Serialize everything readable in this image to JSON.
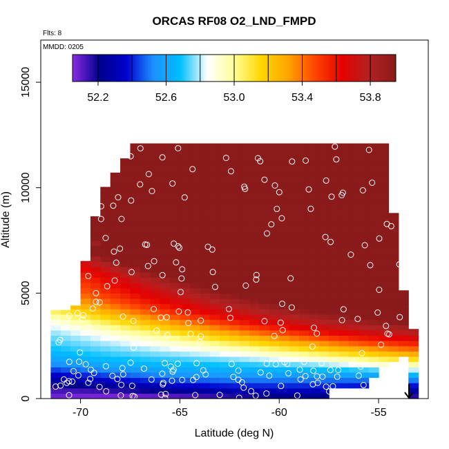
{
  "chart_data": {
    "type": "heatmap",
    "title": "ORCAS RF08 O2_LND_FMPD",
    "flights_label": "Flts: 8",
    "date_label": "MMDD: 0205",
    "xlabel": "Latitude (deg N)",
    "ylabel": "Altitude (m)",
    "xlim": [
      -72,
      -52.5
    ],
    "ylim": [
      0,
      17000
    ],
    "x_ticks": [
      -70,
      -65,
      -60,
      -55
    ],
    "x_tick_labels": [
      "-70",
      "-65",
      "-60",
      "-55"
    ],
    "y_ticks": [
      0,
      5000,
      10000,
      15000
    ],
    "y_tick_labels": [
      "0",
      "5000",
      "10000",
      "15000"
    ],
    "colorbar": {
      "min": 52.05,
      "max": 53.95,
      "ticks": [
        52.2,
        52.6,
        53.0,
        53.4,
        53.8
      ],
      "tick_labels": [
        "52.2",
        "52.6",
        "53.0",
        "53.4",
        "53.8"
      ],
      "colors": [
        "#8a2be2",
        "#00008b",
        "#0000cd",
        "#1e90ff",
        "#00bfff",
        "#ffffff",
        "#ffff99",
        "#ffd700",
        "#ffa500",
        "#ff4500",
        "#e60000",
        "#b22222",
        "#8b1a1a"
      ]
    },
    "field_summary": "Low values (52.1-52.5) near surface at high southern latitudes; values rise with altitude and toward the north, reaching about 53.9 above 8000 m.",
    "arrow_marker_latitude": -53,
    "colors": {
      "low": "#7b2be2",
      "mid": "#ffffff",
      "high": "#a01010",
      "sample_circle": "#ffffff",
      "frame": "#000000"
    }
  }
}
